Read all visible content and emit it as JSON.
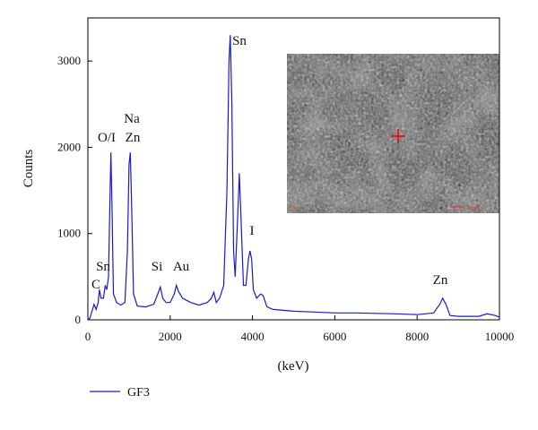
{
  "chart_data": {
    "type": "line",
    "xlabel": "(keV)",
    "ylabel": "Counts",
    "xlim": [
      0,
      10000
    ],
    "ylim": [
      0,
      3500
    ],
    "xticks": [
      0,
      2000,
      4000,
      6000,
      8000,
      10000
    ],
    "yticks": [
      0,
      1000,
      2000,
      3000
    ],
    "x": [
      0,
      50,
      100,
      150,
      200,
      250,
      280,
      320,
      380,
      420,
      460,
      500,
      540,
      560,
      590,
      620,
      700,
      800,
      900,
      960,
      1000,
      1030,
      1070,
      1110,
      1200,
      1400,
      1600,
      1700,
      1760,
      1820,
      1900,
      2000,
      2100,
      2150,
      2200,
      2300,
      2500,
      2700,
      2900,
      3000,
      3060,
      3120,
      3200,
      3300,
      3380,
      3430,
      3460,
      3500,
      3540,
      3580,
      3640,
      3680,
      3720,
      3780,
      3840,
      3900,
      3940,
      3980,
      4020,
      4100,
      4200,
      4260,
      4350,
      4500,
      5000,
      5500,
      6000,
      6500,
      7000,
      7500,
      8000,
      8400,
      8550,
      8620,
      8700,
      8800,
      9000,
      9500,
      9700,
      9900,
      10000
    ],
    "series": [
      {
        "name": "GF3",
        "color": "#1a1acc",
        "values": [
          0,
          20,
          100,
          180,
          120,
          200,
          350,
          250,
          250,
          400,
          350,
          500,
          1500,
          1940,
          1200,
          300,
          200,
          170,
          200,
          800,
          1800,
          1940,
          1200,
          300,
          160,
          150,
          180,
          300,
          380,
          250,
          200,
          200,
          300,
          400,
          330,
          250,
          200,
          170,
          200,
          250,
          320,
          200,
          250,
          400,
          1500,
          3000,
          3300,
          2500,
          800,
          500,
          1200,
          1700,
          1200,
          400,
          400,
          700,
          800,
          700,
          350,
          250,
          300,
          280,
          150,
          120,
          100,
          90,
          80,
          80,
          75,
          70,
          60,
          80,
          180,
          250,
          180,
          50,
          40,
          40,
          70,
          50,
          30
        ]
      }
    ],
    "annotations": [
      "Sn",
      "O/I",
      "Na",
      "Zn",
      "Sn",
      "C",
      "Si",
      "Au",
      "I",
      "Zn"
    ],
    "legend": "bottom-left",
    "inset": {
      "corner_label": "SE1",
      "scale_label": "2 μm"
    }
  }
}
